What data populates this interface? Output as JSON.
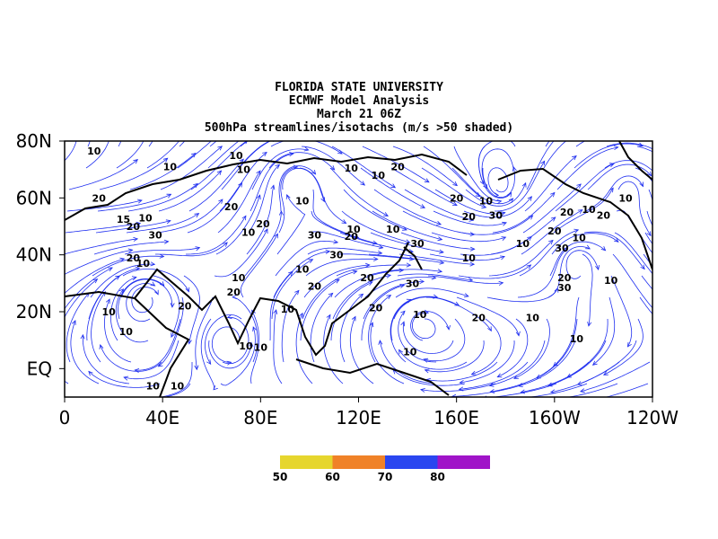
{
  "chart_data": {
    "type": "streamline-map",
    "title_lines": [
      "FLORIDA STATE UNIVERSITY",
      "ECMWF Model Analysis",
      "March 21 06Z",
      "500hPa streamlines/isotachs (m/s >50 shaded)"
    ],
    "xlim": [
      0,
      240
    ],
    "ylim": [
      -10,
      80
    ],
    "xticks": [
      0,
      {
        "value": 40,
        "label": "40E"
      },
      {
        "value": 80,
        "label": "80E"
      },
      {
        "value": 120,
        "label": "120E"
      },
      {
        "value": 160,
        "label": "160E"
      },
      {
        "value": 200,
        "label": "160W"
      },
      {
        "value": 240,
        "label": "120W"
      }
    ],
    "yticks": [
      {
        "value": 80,
        "label": "80N"
      },
      {
        "value": 60,
        "label": "60N"
      },
      {
        "value": 40,
        "label": "40N"
      },
      {
        "value": 20,
        "label": "20N"
      },
      {
        "value": 0,
        "label": "EQ"
      }
    ],
    "streamline_color": "#1f2ff0",
    "contour_labels": [
      {
        "x": 12,
        "y": 76.5,
        "value": 10
      },
      {
        "x": 43,
        "y": 71,
        "value": 10
      },
      {
        "x": 70,
        "y": 75,
        "value": 10
      },
      {
        "x": 73,
        "y": 70,
        "value": 10
      },
      {
        "x": 117,
        "y": 70.5,
        "value": 10
      },
      {
        "x": 128,
        "y": 68,
        "value": 10
      },
      {
        "x": 136,
        "y": 71,
        "value": 20
      },
      {
        "x": 14,
        "y": 60,
        "value": 20
      },
      {
        "x": 24,
        "y": 52.5,
        "value": 15
      },
      {
        "x": 28,
        "y": 50,
        "value": 20
      },
      {
        "x": 33,
        "y": 53,
        "value": 10
      },
      {
        "x": 37,
        "y": 47,
        "value": 30
      },
      {
        "x": 68,
        "y": 57,
        "value": 20
      },
      {
        "x": 81,
        "y": 51,
        "value": 20
      },
      {
        "x": 75,
        "y": 48,
        "value": 10
      },
      {
        "x": 97,
        "y": 59,
        "value": 10
      },
      {
        "x": 102,
        "y": 47,
        "value": 30
      },
      {
        "x": 117,
        "y": 46.5,
        "value": 20
      },
      {
        "x": 118,
        "y": 49,
        "value": 10
      },
      {
        "x": 111,
        "y": 40,
        "value": 30
      },
      {
        "x": 134,
        "y": 49,
        "value": 10
      },
      {
        "x": 144,
        "y": 44,
        "value": 30
      },
      {
        "x": 160,
        "y": 60,
        "value": 20
      },
      {
        "x": 172,
        "y": 59,
        "value": 10
      },
      {
        "x": 165,
        "y": 53.5,
        "value": 20
      },
      {
        "x": 176,
        "y": 54,
        "value": 30
      },
      {
        "x": 165,
        "y": 39,
        "value": 10
      },
      {
        "x": 187,
        "y": 44,
        "value": 10
      },
      {
        "x": 200,
        "y": 48.5,
        "value": 20
      },
      {
        "x": 205,
        "y": 55,
        "value": 20
      },
      {
        "x": 214,
        "y": 56,
        "value": 10
      },
      {
        "x": 220,
        "y": 54,
        "value": 20
      },
      {
        "x": 229,
        "y": 60,
        "value": 10
      },
      {
        "x": 210,
        "y": 46,
        "value": 10
      },
      {
        "x": 203,
        "y": 42.5,
        "value": 30
      },
      {
        "x": 204,
        "y": 32,
        "value": 20
      },
      {
        "x": 204,
        "y": 28.5,
        "value": 30
      },
      {
        "x": 223,
        "y": 31,
        "value": 10
      },
      {
        "x": 32,
        "y": 37,
        "value": 10
      },
      {
        "x": 28,
        "y": 39,
        "value": 20
      },
      {
        "x": 71,
        "y": 32,
        "value": 10
      },
      {
        "x": 69,
        "y": 27,
        "value": 20
      },
      {
        "x": 49,
        "y": 22,
        "value": 20
      },
      {
        "x": 97,
        "y": 35,
        "value": 10
      },
      {
        "x": 102,
        "y": 29,
        "value": 20
      },
      {
        "x": 123.5,
        "y": 32,
        "value": 20
      },
      {
        "x": 142,
        "y": 30,
        "value": 30
      },
      {
        "x": 127,
        "y": 21.5,
        "value": 20
      },
      {
        "x": 145,
        "y": 19,
        "value": 10
      },
      {
        "x": 169,
        "y": 18,
        "value": 20
      },
      {
        "x": 191,
        "y": 18,
        "value": 10
      },
      {
        "x": 91,
        "y": 21,
        "value": 10
      },
      {
        "x": 18,
        "y": 20,
        "value": 10
      },
      {
        "x": 25,
        "y": 13,
        "value": 10
      },
      {
        "x": 74,
        "y": 8,
        "value": 10
      },
      {
        "x": 80,
        "y": 7.5,
        "value": 10
      },
      {
        "x": 141,
        "y": 6,
        "value": 10
      },
      {
        "x": 209,
        "y": 10.5,
        "value": 10
      },
      {
        "x": 36,
        "y": -6,
        "value": 10
      },
      {
        "x": 46,
        "y": -6,
        "value": 10
      }
    ],
    "colorbar": {
      "ticks": [
        50,
        60,
        70,
        80
      ],
      "colors": [
        "#e6d62e",
        "#f08228",
        "#2a46f0",
        "#a014c8"
      ]
    }
  }
}
